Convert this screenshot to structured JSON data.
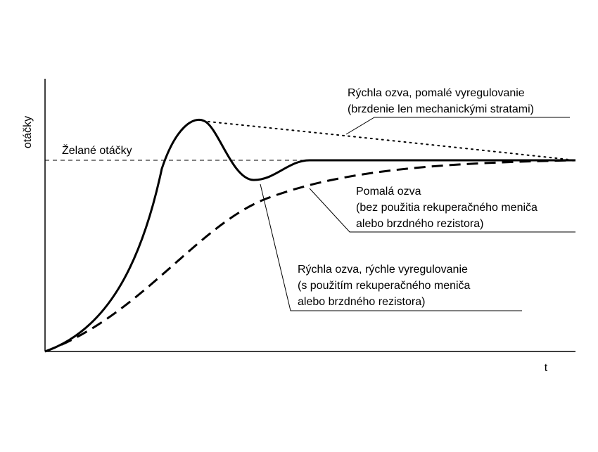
{
  "axes": {
    "y_label": "otáčky",
    "x_label": "t"
  },
  "setpoint": {
    "label": "Želané otáčky"
  },
  "annotations": [
    {
      "id": "fast-slow-settle",
      "lines": [
        "Rýchla ozva, pomalé vyregulovanie",
        "(brzdenie len mechanickými stratami)"
      ]
    },
    {
      "id": "slow-response",
      "lines": [
        "Pomalá ozva",
        "(bez použitia rekuperačného meniča",
        "alebo brzdného rezistora)"
      ]
    },
    {
      "id": "fast-fast-settle",
      "lines": [
        "Rýchla ozva, rýchle vyregulovanie",
        "(s použitím rekuperačného meniča",
        "alebo brzdného rezistora)"
      ]
    }
  ],
  "colors": {
    "ink": "#000000",
    "background": "#ffffff"
  }
}
